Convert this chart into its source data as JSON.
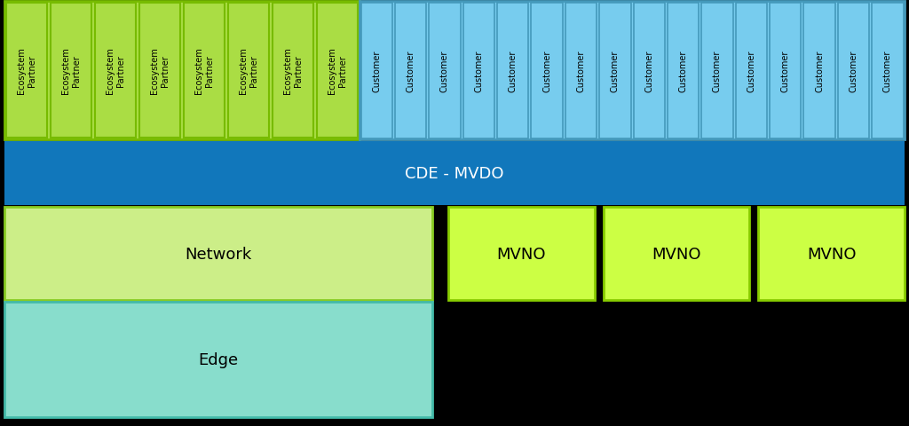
{
  "fig_width": 10.24,
  "fig_height": 4.81,
  "dpi": 100,
  "bg_color": "#000000",
  "ecosystem_color": "#aadd44",
  "ecosystem_border": "#77bb00",
  "customer_color": "#77ccee",
  "customer_border": "#4499bb",
  "cde_color": "#1177bb",
  "cde_text_color": "#ffffff",
  "cde_label": "CDE - MVDO",
  "network_color": "#ccee88",
  "network_border": "#88cc22",
  "network_label": "Network",
  "edge_color": "#88ddcc",
  "edge_border": "#44bbaa",
  "edge_label": "Edge",
  "mvno_color": "#ccff44",
  "mvno_border": "#88cc00",
  "mvno_label": "MVNO",
  "n_ecosystem": 8,
  "n_customer": 16,
  "ecosystem_label": "Ecosystem\nPartner",
  "customer_label": "Customer",
  "font_size_small": 7,
  "font_size_medium": 11,
  "font_size_large": 13,
  "font_size_cde": 13
}
